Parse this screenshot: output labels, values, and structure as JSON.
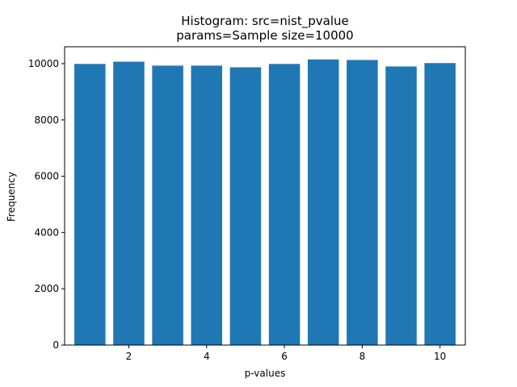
{
  "chart_data": {
    "type": "bar",
    "title": "Histogram: src=nist_pvalue\nparams=Sample size=10000",
    "title_lines": [
      "Histogram: src=nist_pvalue",
      "params=Sample size=10000"
    ],
    "xlabel": "p-values",
    "ylabel": "Frequency",
    "x": [
      1,
      2,
      3,
      4,
      5,
      6,
      7,
      8,
      9,
      10
    ],
    "values": [
      9990,
      10070,
      9930,
      9930,
      9870,
      9990,
      10150,
      10130,
      9900,
      10020
    ],
    "xlim": [
      0.35,
      10.65
    ],
    "ylim": [
      0,
      10600
    ],
    "xticks": [
      2,
      4,
      6,
      8,
      10
    ],
    "yticks": [
      0,
      2000,
      4000,
      6000,
      8000,
      10000
    ],
    "bar_width": 0.8,
    "bar_color": "#1f77b4",
    "grid": false,
    "legend": "none"
  }
}
